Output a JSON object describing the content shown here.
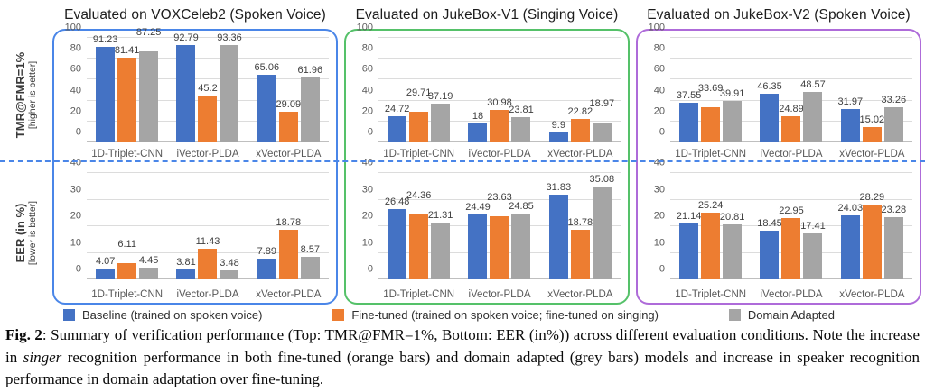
{
  "figure": {
    "panels": [
      {
        "title": "Evaluated on VOXCeleb2 (Spoken Voice)",
        "border_color": "#4A86E8"
      },
      {
        "title": "Evaluated on JukeBox-V1 (Singing Voice)",
        "border_color": "#55C169"
      },
      {
        "title": "Evaluated on JukeBox-V2 (Spoken Voice)",
        "border_color": "#AE6BD9"
      }
    ],
    "axes": {
      "top": {
        "label": "TMR@FMR=1%",
        "sub": "[higher is better]"
      },
      "bottom": {
        "label": "EER (in %)",
        "sub": "[lower is better]"
      }
    },
    "separator_color": "#4A86E8"
  },
  "colors": {
    "series": [
      "#4472C4",
      "#ED7D31",
      "#A5A5A5"
    ],
    "grid": "#DCDCDC",
    "zero_line": "#BFBFBF",
    "tick_text": "#595959",
    "value_text": "#404040"
  },
  "chart_data": [
    {
      "type": "bar",
      "panel": "Evaluated on VOXCeleb2 (Spoken Voice)",
      "metric": "TMR@FMR=1%",
      "categories": [
        "1D-Triplet-CNN",
        "iVector-PLDA",
        "xVector-PLDA"
      ],
      "series": [
        {
          "name": "Baseline (trained on spoken voice)",
          "values": [
            91.23,
            92.79,
            65.06
          ]
        },
        {
          "name": "Fine-tuned (trained on spoken voice; fine-tuned on singing)",
          "values": [
            81.41,
            45.2,
            29.09
          ]
        },
        {
          "name": "Domain Adapted",
          "values": [
            87.25,
            93.36,
            61.96
          ]
        }
      ],
      "ylim": [
        0,
        100
      ],
      "yticks": [
        0,
        20,
        40,
        60,
        80,
        100
      ],
      "grid": true,
      "legend_position": "none"
    },
    {
      "type": "bar",
      "panel": "Evaluated on JukeBox-V1 (Singing Voice)",
      "metric": "TMR@FMR=1%",
      "categories": [
        "1D-Triplet-CNN",
        "iVector-PLDA",
        "xVector-PLDA"
      ],
      "series": [
        {
          "name": "Baseline (trained on spoken voice)",
          "values": [
            24.72,
            18,
            9.9
          ]
        },
        {
          "name": "Fine-tuned (trained on spoken voice; fine-tuned on singing)",
          "values": [
            29.71,
            30.98,
            22.82
          ]
        },
        {
          "name": "Domain Adapted",
          "values": [
            37.19,
            23.81,
            18.97
          ]
        }
      ],
      "ylim": [
        0,
        100
      ],
      "yticks": [
        0,
        20,
        40,
        60,
        80,
        100
      ],
      "grid": true,
      "legend_position": "none"
    },
    {
      "type": "bar",
      "panel": "Evaluated on JukeBox-V2 (Spoken Voice)",
      "metric": "TMR@FMR=1%",
      "categories": [
        "1D-Triplet-CNN",
        "iVector-PLDA",
        "xVector-PLDA"
      ],
      "series": [
        {
          "name": "Baseline (trained on spoken voice)",
          "values": [
            37.55,
            46.35,
            31.97
          ]
        },
        {
          "name": "Fine-tuned (trained on spoken voice; fine-tuned on singing)",
          "values": [
            33.69,
            24.89,
            15.02
          ]
        },
        {
          "name": "Domain Adapted",
          "values": [
            39.91,
            48.57,
            33.26
          ]
        }
      ],
      "ylim": [
        0,
        100
      ],
      "yticks": [
        0,
        20,
        40,
        60,
        80,
        100
      ],
      "grid": true,
      "legend_position": "none"
    },
    {
      "type": "bar",
      "panel": "Evaluated on VOXCeleb2 (Spoken Voice)",
      "metric": "EER (in %)",
      "categories": [
        "1D-Triplet-CNN",
        "iVector-PLDA",
        "xVector-PLDA"
      ],
      "series": [
        {
          "name": "Baseline (trained on spoken voice)",
          "values": [
            4.07,
            3.81,
            7.89
          ]
        },
        {
          "name": "Fine-tuned (trained on spoken voice; fine-tuned on singing)",
          "values": [
            6.11,
            11.43,
            18.78
          ]
        },
        {
          "name": "Domain Adapted",
          "values": [
            4.45,
            3.48,
            8.57
          ]
        }
      ],
      "ylim": [
        0,
        40
      ],
      "yticks": [
        0,
        10,
        20,
        30,
        40
      ],
      "grid": true,
      "legend_position": "none"
    },
    {
      "type": "bar",
      "panel": "Evaluated on JukeBox-V1 (Singing Voice)",
      "metric": "EER (in %)",
      "categories": [
        "1D-Triplet-CNN",
        "iVector-PLDA",
        "xVector-PLDA"
      ],
      "series": [
        {
          "name": "Baseline (trained on spoken voice)",
          "values": [
            26.48,
            24.49,
            31.83
          ]
        },
        {
          "name": "Fine-tuned (trained on spoken voice; fine-tuned on singing)",
          "values": [
            24.36,
            23.63,
            18.78
          ]
        },
        {
          "name": "Domain Adapted",
          "values": [
            21.31,
            24.85,
            35.08
          ]
        }
      ],
      "ylim": [
        0,
        40
      ],
      "yticks": [
        0,
        10,
        20,
        30,
        40
      ],
      "grid": true,
      "legend_position": "none"
    },
    {
      "type": "bar",
      "panel": "Evaluated on JukeBox-V2 (Spoken Voice)",
      "metric": "EER (in %)",
      "categories": [
        "1D-Triplet-CNN",
        "iVector-PLDA",
        "xVector-PLDA"
      ],
      "series": [
        {
          "name": "Baseline (trained on spoken voice)",
          "values": [
            21.14,
            18.45,
            24.03
          ]
        },
        {
          "name": "Fine-tuned (trained on spoken voice; fine-tuned on singing)",
          "values": [
            25.24,
            22.95,
            28.29
          ]
        },
        {
          "name": "Domain Adapted",
          "values": [
            20.81,
            17.41,
            23.28
          ]
        }
      ],
      "ylim": [
        0,
        40
      ],
      "yticks": [
        0,
        10,
        20,
        30,
        40
      ],
      "grid": true,
      "legend_position": "none"
    }
  ],
  "legend": {
    "items": [
      {
        "label": "Baseline (trained on spoken voice)",
        "color": "#4472C4"
      },
      {
        "label": "Fine-tuned (trained on spoken voice; fine-tuned on singing)",
        "color": "#ED7D31"
      },
      {
        "label": "Domain Adapted",
        "color": "#A5A5A5"
      }
    ]
  },
  "caption": {
    "segments": [
      {
        "text": "Fig. 2",
        "style": "bold"
      },
      {
        "text": ": Summary of verification performance (Top: TMR@FMR=1%, Bottom: EER (in%)) across different evaluation conditions. Note the increase in ",
        "style": "normal"
      },
      {
        "text": "singer",
        "style": "italic"
      },
      {
        "text": " recognition performance in both fine-tuned (orange bars) and domain adapted (grey bars) models and increase in speaker recognition performance in domain adaptation over fine-tuning.",
        "style": "normal"
      }
    ]
  }
}
